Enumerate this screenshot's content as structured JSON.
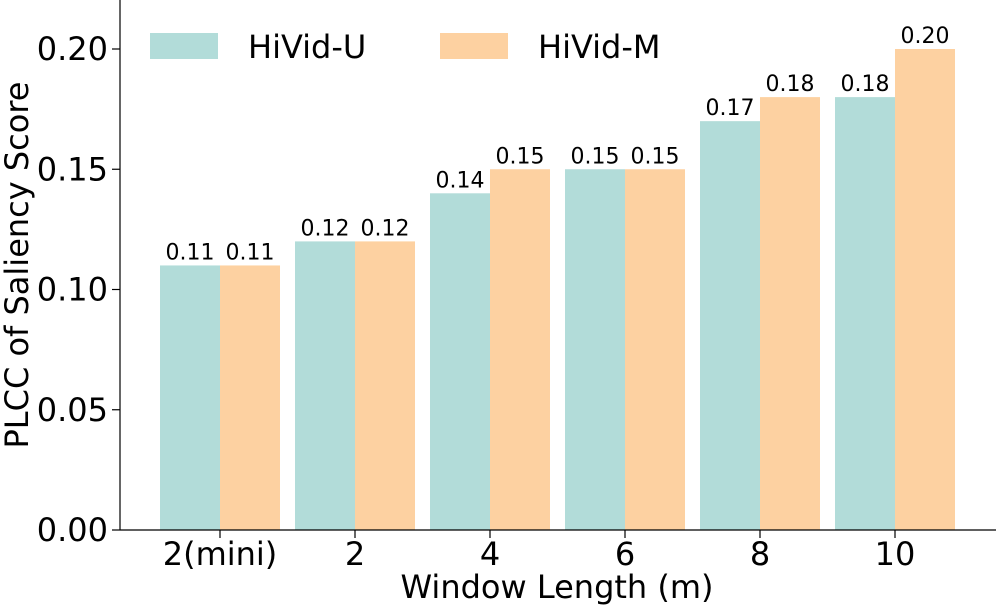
{
  "chart_data": {
    "type": "bar",
    "categories": [
      "2(mini)",
      "2",
      "4",
      "6",
      "8",
      "10"
    ],
    "series": [
      {
        "name": "HiVid-U",
        "color": "#b2dcd9",
        "values": [
          0.11,
          0.12,
          0.14,
          0.15,
          0.17,
          0.18
        ],
        "labels": [
          "0.11",
          "0.12",
          "0.14",
          "0.15",
          "0.17",
          "0.18"
        ]
      },
      {
        "name": "HiVid-M",
        "color": "#fdd1a1",
        "values": [
          0.11,
          0.12,
          0.15,
          0.15,
          0.18,
          0.2
        ],
        "labels": [
          "0.11",
          "0.12",
          "0.15",
          "0.15",
          "0.18",
          "0.20"
        ]
      }
    ],
    "xlabel": "Window Length (m)",
    "ylabel": "PLCC of Saliency Score",
    "ylim": [
      0,
      0.22
    ],
    "yticks": [
      0.0,
      0.05,
      0.1,
      0.15,
      0.2
    ],
    "ytick_labels": [
      "0.00",
      "0.05",
      "0.10",
      "0.15",
      "0.20"
    ],
    "grid": false,
    "legend_position": "top-left"
  }
}
